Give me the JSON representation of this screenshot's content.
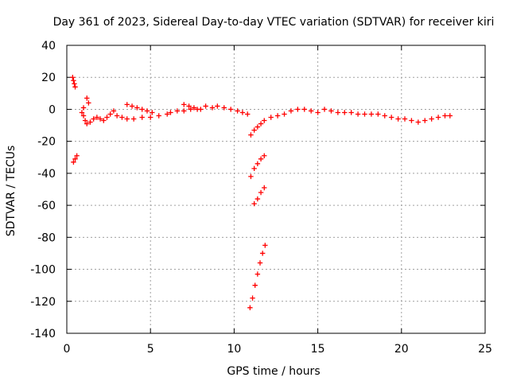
{
  "chart_data": {
    "type": "scatter",
    "title": "Day 361 of 2023, Sidereal Day-to-day VTEC variation (SDTVAR) for receiver kiri",
    "xlabel": "GPS time / hours",
    "ylabel": "SDTVAR / TECUs",
    "xlim": [
      0,
      25
    ],
    "ylim": [
      -140,
      40
    ],
    "xticks": [
      0,
      5,
      10,
      15,
      20,
      25
    ],
    "yticks": [
      40,
      20,
      0,
      -20,
      -40,
      -60,
      -80,
      -100,
      -120,
      -140
    ],
    "grid": true,
    "marker": "plus",
    "color": "#ff0000",
    "series": [
      {
        "values": [
          [
            0.35,
            20
          ],
          [
            0.4,
            18
          ],
          [
            0.45,
            16
          ],
          [
            0.5,
            14
          ],
          [
            0.4,
            -33
          ],
          [
            0.5,
            -31
          ],
          [
            0.6,
            -29
          ],
          [
            0.9,
            -2
          ],
          [
            1.0,
            -4
          ],
          [
            1.1,
            -7
          ],
          [
            1.2,
            -9
          ],
          [
            1.4,
            -8
          ],
          [
            1.6,
            -6
          ],
          [
            1.8,
            -5
          ],
          [
            1.2,
            7
          ],
          [
            1.3,
            4
          ],
          [
            1.0,
            1
          ],
          [
            2.0,
            -6
          ],
          [
            2.2,
            -7
          ],
          [
            2.4,
            -5
          ],
          [
            2.6,
            -3
          ],
          [
            2.8,
            -1
          ],
          [
            3.0,
            -4
          ],
          [
            3.3,
            -5
          ],
          [
            3.6,
            -6
          ],
          [
            4.0,
            -6
          ],
          [
            4.5,
            -5
          ],
          [
            5.0,
            -5
          ],
          [
            5.5,
            -4
          ],
          [
            6.0,
            -3
          ],
          [
            3.6,
            3
          ],
          [
            3.9,
            2
          ],
          [
            4.2,
            1
          ],
          [
            4.5,
            0
          ],
          [
            4.8,
            -1
          ],
          [
            5.1,
            -2
          ],
          [
            6.2,
            -2
          ],
          [
            6.6,
            -1
          ],
          [
            7.0,
            -1
          ],
          [
            7.4,
            0
          ],
          [
            7.8,
            0
          ],
          [
            7.0,
            3
          ],
          [
            7.3,
            2
          ],
          [
            7.6,
            1
          ],
          [
            8.0,
            0
          ],
          [
            8.3,
            2
          ],
          [
            8.7,
            1
          ],
          [
            9.0,
            2
          ],
          [
            9.4,
            1
          ],
          [
            9.8,
            0
          ],
          [
            10.2,
            -1
          ],
          [
            10.5,
            -2
          ],
          [
            10.8,
            -3
          ],
          [
            11.0,
            -16
          ],
          [
            11.2,
            -13
          ],
          [
            11.4,
            -11
          ],
          [
            11.6,
            -9
          ],
          [
            11.8,
            -7
          ],
          [
            11.0,
            -42
          ],
          [
            11.2,
            -37
          ],
          [
            11.4,
            -34
          ],
          [
            11.6,
            -31
          ],
          [
            11.8,
            -29
          ],
          [
            11.2,
            -59
          ],
          [
            11.4,
            -56
          ],
          [
            11.6,
            -52
          ],
          [
            11.8,
            -49
          ],
          [
            10.95,
            -124
          ],
          [
            11.1,
            -118
          ],
          [
            11.25,
            -110
          ],
          [
            11.4,
            -103
          ],
          [
            11.55,
            -96
          ],
          [
            11.7,
            -90
          ],
          [
            11.85,
            -85
          ],
          [
            12.2,
            -5
          ],
          [
            12.6,
            -4
          ],
          [
            13.0,
            -3
          ],
          [
            13.4,
            -1
          ],
          [
            13.8,
            0
          ],
          [
            14.2,
            0
          ],
          [
            14.6,
            -1
          ],
          [
            15.0,
            -2
          ],
          [
            15.4,
            0
          ],
          [
            15.8,
            -1
          ],
          [
            16.2,
            -2
          ],
          [
            16.6,
            -2
          ],
          [
            17.0,
            -2
          ],
          [
            17.4,
            -3
          ],
          [
            17.8,
            -3
          ],
          [
            18.2,
            -3
          ],
          [
            18.6,
            -3
          ],
          [
            19.0,
            -4
          ],
          [
            19.4,
            -5
          ],
          [
            19.8,
            -6
          ],
          [
            20.2,
            -6
          ],
          [
            20.6,
            -7
          ],
          [
            21.0,
            -8
          ],
          [
            21.4,
            -7
          ],
          [
            21.8,
            -6
          ],
          [
            22.2,
            -5
          ],
          [
            22.6,
            -4
          ],
          [
            22.9,
            -4
          ]
        ]
      }
    ]
  }
}
